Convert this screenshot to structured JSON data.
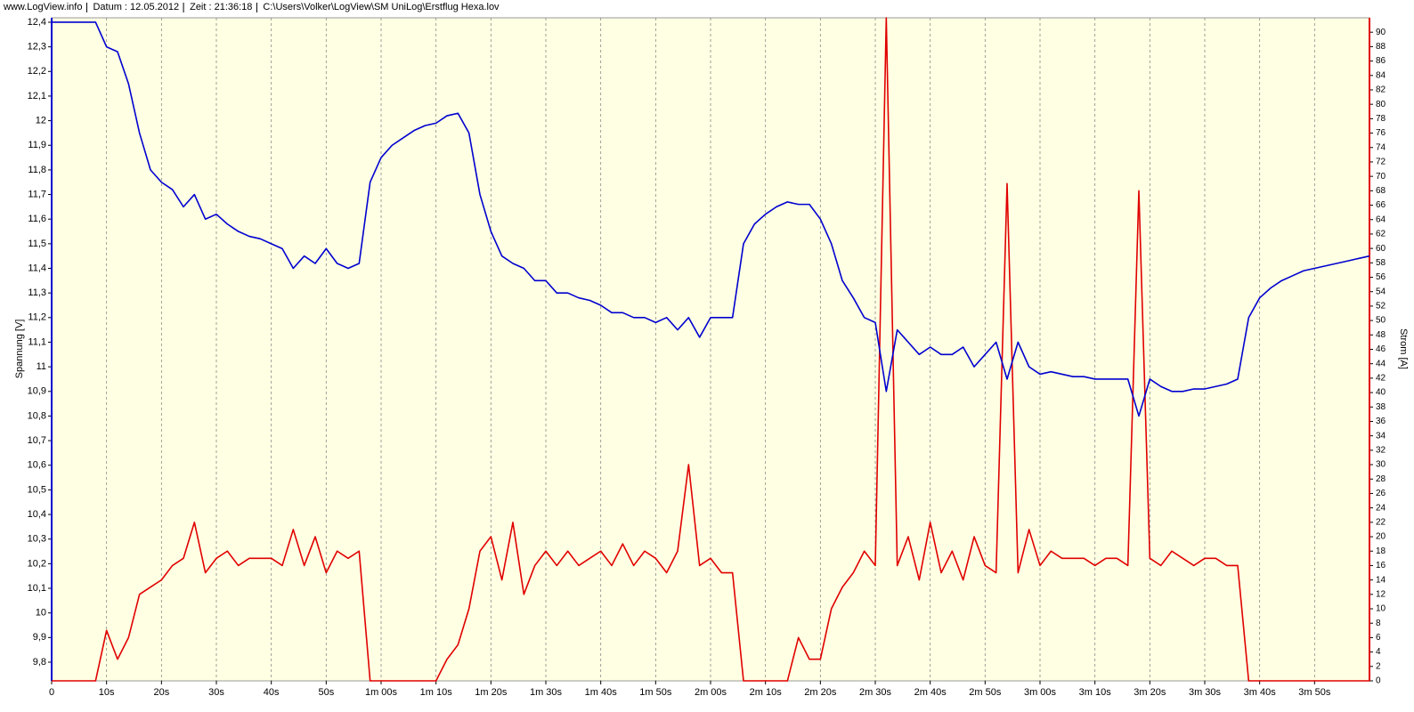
{
  "chart_data": {
    "type": "line",
    "header": [
      "www.LogView.info",
      "Datum : 12.05.2012",
      "Zeit : 21:36:18",
      "C:\\Users\\Volker\\LogView\\SM UniLog\\Erstflug Hexa.lov"
    ],
    "ylabel": "Spannung [V]",
    "y2label": "Strom [A]",
    "xlim": [
      0,
      240
    ],
    "ylim": [
      9.724,
      12.418
    ],
    "y2lim": [
      0,
      92
    ],
    "xgrid": true,
    "xticks": [
      0,
      {
        "value": 10,
        "label": "10s"
      },
      {
        "value": 20,
        "label": "20s"
      },
      {
        "value": 30,
        "label": "30s"
      },
      {
        "value": 40,
        "label": "40s"
      },
      {
        "value": 50,
        "label": "50s"
      },
      {
        "value": 60,
        "label": "1m 00s"
      },
      {
        "value": 70,
        "label": "1m 10s"
      },
      {
        "value": 80,
        "label": "1m 20s"
      },
      {
        "value": 90,
        "label": "1m 30s"
      },
      {
        "value": 100,
        "label": "1m 40s"
      },
      {
        "value": 110,
        "label": "1m 50s"
      },
      {
        "value": 120,
        "label": "2m 00s"
      },
      {
        "value": 130,
        "label": "2m 10s"
      },
      {
        "value": 140,
        "label": "2m 20s"
      },
      {
        "value": 150,
        "label": "2m 30s"
      },
      {
        "value": 160,
        "label": "2m 40s"
      },
      {
        "value": 170,
        "label": "2m 50s"
      },
      {
        "value": 180,
        "label": "3m 00s"
      },
      {
        "value": 190,
        "label": "3m 10s"
      },
      {
        "value": 200,
        "label": "3m 20s"
      },
      {
        "value": 210,
        "label": "3m 30s"
      },
      {
        "value": 220,
        "label": "3m 40s"
      },
      {
        "value": 230,
        "label": "3m 50s"
      }
    ],
    "yticks": [
      {
        "value": 9.8,
        "label": "9,8"
      },
      {
        "value": 9.9,
        "label": "9,9"
      },
      10,
      {
        "value": 10.1,
        "label": "10,1"
      },
      {
        "value": 10.2,
        "label": "10,2"
      },
      {
        "value": 10.3,
        "label": "10,3"
      },
      {
        "value": 10.4,
        "label": "10,4"
      },
      {
        "value": 10.5,
        "label": "10,5"
      },
      {
        "value": 10.6,
        "label": "10,6"
      },
      {
        "value": 10.7,
        "label": "10,7"
      },
      {
        "value": 10.8,
        "label": "10,8"
      },
      {
        "value": 10.9,
        "label": "10,9"
      },
      11,
      {
        "value": 11.1,
        "label": "11,1"
      },
      {
        "value": 11.2,
        "label": "11,2"
      },
      {
        "value": 11.3,
        "label": "11,3"
      },
      {
        "value": 11.4,
        "label": "11,4"
      },
      {
        "value": 11.5,
        "label": "11,5"
      },
      {
        "value": 11.6,
        "label": "11,6"
      },
      {
        "value": 11.7,
        "label": "11,7"
      },
      {
        "value": 11.8,
        "label": "11,8"
      },
      {
        "value": 11.9,
        "label": "11,9"
      },
      12,
      {
        "value": 12.1,
        "label": "12,1"
      },
      {
        "value": 12.2,
        "label": "12,2"
      },
      {
        "value": 12.3,
        "label": "12,3"
      },
      {
        "value": 12.4,
        "label": "12,4"
      }
    ],
    "y2ticks": [
      0,
      2,
      4,
      6,
      8,
      10,
      12,
      14,
      16,
      18,
      20,
      22,
      24,
      26,
      28,
      30,
      32,
      34,
      36,
      38,
      40,
      42,
      44,
      46,
      48,
      50,
      52,
      54,
      56,
      58,
      60,
      62,
      64,
      66,
      68,
      70,
      72,
      74,
      76,
      78,
      80,
      82,
      84,
      86,
      88,
      90
    ],
    "x": [
      0,
      2,
      4,
      6,
      8,
      10,
      12,
      14,
      16,
      18,
      20,
      22,
      24,
      26,
      28,
      30,
      32,
      34,
      36,
      38,
      40,
      42,
      44,
      46,
      48,
      50,
      52,
      54,
      56,
      58,
      60,
      62,
      64,
      66,
      68,
      70,
      72,
      74,
      76,
      78,
      80,
      82,
      84,
      86,
      88,
      90,
      92,
      94,
      96,
      98,
      100,
      102,
      104,
      106,
      108,
      110,
      112,
      114,
      116,
      118,
      120,
      122,
      124,
      126,
      128,
      130,
      132,
      134,
      136,
      138,
      140,
      142,
      144,
      146,
      148,
      150,
      152,
      154,
      156,
      158,
      160,
      162,
      164,
      166,
      168,
      170,
      172,
      174,
      176,
      178,
      180,
      182,
      184,
      186,
      188,
      190,
      192,
      194,
      196,
      198,
      200,
      202,
      204,
      206,
      208,
      210,
      212,
      214,
      216,
      218,
      220,
      222,
      224,
      226,
      228,
      230,
      232,
      234,
      236,
      238,
      240
    ],
    "series": [
      {
        "color": "#0000d0",
        "values": [
          12.4,
          12.4,
          12.4,
          12.4,
          12.4,
          12.3,
          12.28,
          12.15,
          11.95,
          11.8,
          11.75,
          11.72,
          11.65,
          11.7,
          11.6,
          11.62,
          11.58,
          11.55,
          11.53,
          11.52,
          11.5,
          11.48,
          11.4,
          11.45,
          11.42,
          11.48,
          11.42,
          11.4,
          11.42,
          11.75,
          11.85,
          11.9,
          11.93,
          11.96,
          11.98,
          11.99,
          12.02,
          12.03,
          11.95,
          11.7,
          11.55,
          11.45,
          11.42,
          11.4,
          11.35,
          11.35,
          11.3,
          11.3,
          11.28,
          11.27,
          11.25,
          11.22,
          11.22,
          11.2,
          11.2,
          11.18,
          11.2,
          11.15,
          11.2,
          11.12,
          11.2,
          11.2,
          11.2,
          11.5,
          11.58,
          11.62,
          11.65,
          11.67,
          11.66,
          11.66,
          11.6,
          11.5,
          11.35,
          11.28,
          11.2,
          11.18,
          10.9,
          11.15,
          11.1,
          11.05,
          11.08,
          11.05,
          11.05,
          11.08,
          11.0,
          11.05,
          11.1,
          10.95,
          11.1,
          11.0,
          10.97,
          10.98,
          10.97,
          10.96,
          10.96,
          10.95,
          10.95,
          10.95,
          10.95,
          10.8,
          10.95,
          10.92,
          10.9,
          10.9,
          10.91,
          10.91,
          10.92,
          10.93,
          10.95,
          11.2,
          11.28,
          11.32,
          11.35,
          11.37,
          11.39,
          11.4,
          11.41,
          11.42,
          11.43,
          11.44,
          11.45
        ]
      },
      {
        "color": "#e00000",
        "axis": "y2",
        "values": [
          0,
          0,
          0,
          0,
          0,
          7,
          3,
          6,
          12,
          13,
          14,
          16,
          17,
          22,
          15,
          17,
          18,
          16,
          17,
          17,
          17,
          16,
          21,
          16,
          20,
          15,
          18,
          17,
          18,
          0,
          0,
          0,
          0,
          0,
          0,
          0,
          3,
          5,
          10,
          18,
          20,
          14,
          22,
          12,
          16,
          18,
          16,
          18,
          16,
          17,
          18,
          16,
          19,
          16,
          18,
          17,
          15,
          18,
          30,
          16,
          17,
          15,
          15,
          0,
          0,
          0,
          0,
          0,
          6,
          3,
          3,
          10,
          13,
          15,
          18,
          16,
          92,
          16,
          20,
          14,
          22,
          15,
          18,
          14,
          20,
          16,
          15,
          69,
          15,
          21,
          16,
          18,
          17,
          17,
          17,
          16,
          17,
          17,
          16,
          68,
          17,
          16,
          18,
          17,
          16,
          17,
          17,
          16,
          16,
          0,
          0,
          0,
          0,
          0,
          0,
          0,
          0,
          0,
          0,
          0,
          0
        ]
      }
    ]
  }
}
